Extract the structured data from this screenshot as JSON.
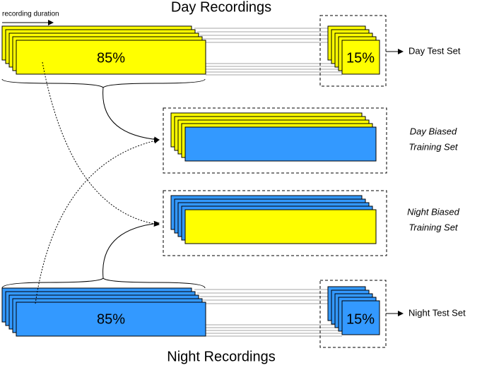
{
  "day": {
    "title": "Day Recordings",
    "duration_label": "recording duration",
    "train_share": "85%",
    "test_share": "15%",
    "test_set": "Day Test Set"
  },
  "day_biased": {
    "line1": "Day Biased",
    "line2": "Training Set"
  },
  "night_biased": {
    "line1": "Night Biased",
    "line2": "Training Set"
  },
  "night": {
    "title": "Night Recordings",
    "train_share": "85%",
    "test_share": "15%",
    "test_set": "Night Test Set"
  }
}
